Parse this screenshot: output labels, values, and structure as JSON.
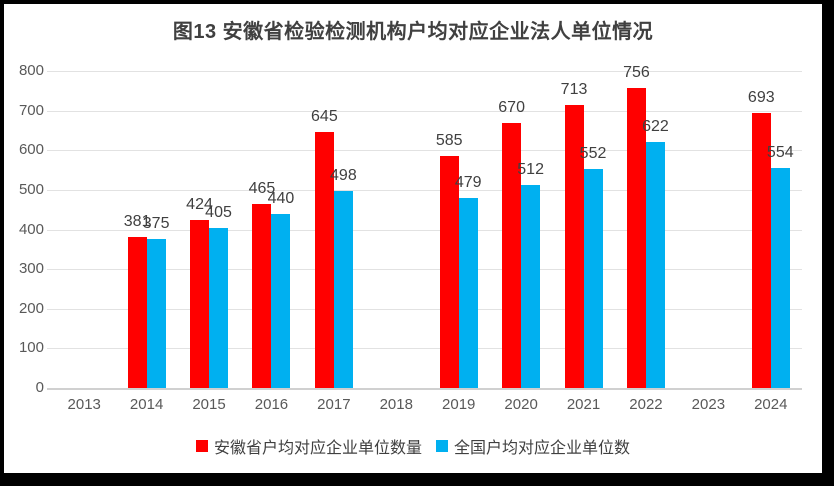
{
  "figure": {
    "frame_color": "#000000",
    "background_color": "#ffffff"
  },
  "chart_data": {
    "type": "bar",
    "title": "图13 安徽省检验检测机构户均对应企业法人单位情况",
    "categories": [
      "2013",
      "2014",
      "2015",
      "2016",
      "2017",
      "2018",
      "2019",
      "2020",
      "2021",
      "2022",
      "2023",
      "2024"
    ],
    "series": [
      {
        "name": "安徽省户均对应企业单位数量",
        "color": "#FF0000",
        "values": [
          null,
          381,
          424,
          465,
          645,
          null,
          585,
          670,
          713,
          756,
          null,
          693
        ]
      },
      {
        "name": "全国户均对应企业单位数",
        "color": "#00B0F0",
        "values": [
          null,
          375,
          405,
          440,
          498,
          null,
          479,
          512,
          552,
          622,
          null,
          554
        ]
      }
    ],
    "xlabel": "",
    "ylabel": "",
    "ylim": [
      0,
      800
    ],
    "ytick_interval": 100,
    "grid": true,
    "data_labels": true,
    "legend_position": "bottom",
    "colors": {
      "title_text": "#404040",
      "axis_text": "#595959",
      "data_label_text": "#404040",
      "gridline": "#e2e2e2",
      "axis_line": "#d0d0d0"
    }
  }
}
